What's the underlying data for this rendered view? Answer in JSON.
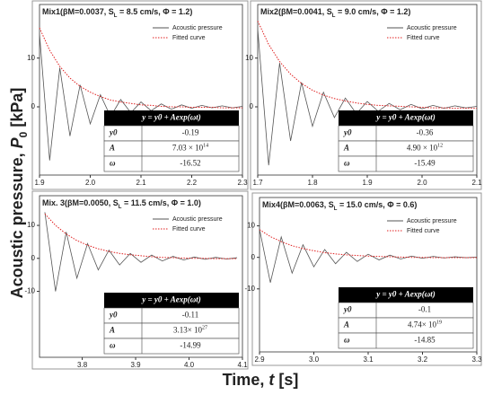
{
  "y_label": {
    "text": "Acoustic pressure, ",
    "symbol": "P",
    "subscript": "0",
    "unit": " [kPa]"
  },
  "x_label": {
    "text": "Time, ",
    "symbol": "t",
    "unit": " [s]"
  },
  "chart_data": [
    {
      "type": "line",
      "title": {
        "main": "Mix1(βM=0.0037, S",
        "sub": "L",
        "rest": " = 8.5 cm/s, Φ = 1.2)"
      },
      "x": [
        1.9,
        1.92,
        1.94,
        1.96,
        1.98,
        2.0,
        2.02,
        2.04,
        2.06,
        2.08,
        2.1,
        2.12,
        2.14,
        2.16,
        2.18,
        2.2,
        2.22,
        2.24,
        2.26,
        2.28,
        2.3
      ],
      "xlim": [
        1.9,
        2.3
      ],
      "xticks": [
        1.9,
        {
          "value": 2,
          "label": "2.0"
        },
        2.1,
        2.2,
        2.3
      ],
      "ylim": [
        -14,
        21
      ],
      "yticks": [
        0,
        10
      ],
      "series": [
        {
          "name": "Acoustic pressure",
          "color": "#555555",
          "values": [
            15,
            -11,
            8,
            -6,
            4.5,
            -3.5,
            2.5,
            -2,
            1.5,
            -1.2,
            1,
            -0.8,
            0.6,
            -0.5,
            0.4,
            -0.3,
            0.3,
            -0.2,
            0.2,
            -0.2,
            0.1
          ]
        },
        {
          "name": "Fitted curve",
          "color": "#e02020",
          "style": "dotted",
          "values": [
            16.2,
            11.6,
            8.3,
            5.9,
            4.2,
            3.0,
            2.1,
            1.4,
            1.0,
            0.7,
            0.4,
            0.3,
            0.1,
            0.0,
            0.0,
            -0.1,
            -0.1,
            -0.1,
            -0.2,
            -0.2,
            -0.2
          ]
        }
      ],
      "table": {
        "header": "y = y0 + Aexp(ωt)",
        "rows": [
          [
            "y0",
            -0.19
          ],
          [
            "A",
            {
              "mantissa": "7.03 × 10",
              "exponent": "14"
            }
          ],
          [
            "ω",
            -16.52
          ]
        ]
      }
    },
    {
      "type": "line",
      "title": {
        "main": "Mix2(βM=0.0041, S",
        "sub": "L",
        "rest": " = 9.0 cm/s, Φ = 1.2)"
      },
      "x": [
        1.7,
        1.72,
        1.74,
        1.76,
        1.78,
        1.8,
        1.82,
        1.84,
        1.86,
        1.88,
        1.9,
        1.92,
        1.94,
        1.96,
        1.98,
        2.0,
        2.02,
        2.04,
        2.06,
        2.08,
        2.1
      ],
      "xlim": [
        1.7,
        2.1
      ],
      "xticks": [
        1.7,
        1.8,
        1.9,
        {
          "value": 2,
          "label": "2.0"
        },
        2.1
      ],
      "ylim": [
        -14,
        21
      ],
      "yticks": [
        0,
        10
      ],
      "series": [
        {
          "name": "Acoustic pressure",
          "color": "#555555",
          "values": [
            16,
            -12,
            9,
            -7,
            5,
            -4,
            3,
            -2.2,
            1.8,
            -1.4,
            1.1,
            -0.9,
            0.7,
            -0.6,
            0.5,
            -0.4,
            0.3,
            -0.3,
            0.2,
            -0.2,
            0.1
          ]
        },
        {
          "name": "Fitted curve",
          "color": "#e02020",
          "style": "dotted",
          "values": [
            17.6,
            12.8,
            9.3,
            6.7,
            4.8,
            3.4,
            2.4,
            1.7,
            1.2,
            0.8,
            0.5,
            0.3,
            0.2,
            0.1,
            0.0,
            -0.1,
            -0.2,
            -0.2,
            -0.3,
            -0.3,
            -0.3
          ]
        }
      ],
      "table": {
        "header": "y = y0 + Aexp(ωt)",
        "rows": [
          [
            "y0",
            -0.36
          ],
          [
            "A",
            {
              "mantissa": "4.90 × 10",
              "exponent": "12"
            }
          ],
          [
            "ω",
            -15.49
          ]
        ]
      }
    },
    {
      "type": "line",
      "title": {
        "main": "Mix. 3(βM=0.0050, S",
        "sub": "L",
        "rest": " = 11.5 cm/s, Φ = 1.0)"
      },
      "x": [
        3.73,
        3.75,
        3.77,
        3.79,
        3.81,
        3.83,
        3.85,
        3.87,
        3.89,
        3.91,
        3.93,
        3.95,
        3.97,
        3.99,
        4.01,
        4.03,
        4.05,
        4.07,
        4.09
      ],
      "xlim": [
        3.72,
        4.1
      ],
      "xticks": [
        3.8,
        3.9,
        {
          "value": 4,
          "label": "4.0"
        },
        4.1
      ],
      "ylim": [
        -30,
        19
      ],
      "yticks": [
        -10,
        0,
        10
      ],
      "series": [
        {
          "name": "Acoustic pressure",
          "color": "#555555",
          "values": [
            14,
            -10,
            8,
            -6,
            4.5,
            -3.5,
            2.5,
            -2,
            1.5,
            -1.2,
            1,
            -0.8,
            0.6,
            -0.5,
            0.4,
            -0.3,
            0.3,
            -0.2,
            0.2
          ]
        },
        {
          "name": "Fitted curve",
          "color": "#e02020",
          "style": "dotted",
          "values": [
            13.5,
            10.0,
            7.4,
            5.4,
            4.0,
            2.9,
            2.1,
            1.5,
            1.1,
            0.8,
            0.5,
            0.3,
            0.2,
            0.1,
            0.0,
            0.0,
            -0.1,
            -0.1,
            -0.1
          ]
        }
      ],
      "table": {
        "header": "y = y0 + Aexp(ωt)",
        "rows": [
          [
            "y0",
            -0.11
          ],
          [
            "A",
            {
              "mantissa": "3.13× 10",
              "exponent": "27"
            }
          ],
          [
            "ω",
            -14.99
          ]
        ]
      }
    },
    {
      "type": "line",
      "title": {
        "main": "Mix4(βM=0.0063, S",
        "sub": "L",
        "rest": " = 15.0 cm/s, Φ = 0.6)"
      },
      "x": [
        2.9,
        2.92,
        2.94,
        2.96,
        2.98,
        3.0,
        3.02,
        3.04,
        3.06,
        3.08,
        3.1,
        3.12,
        3.14,
        3.16,
        3.18,
        3.2,
        3.22,
        3.24,
        3.26,
        3.28,
        3.3
      ],
      "xlim": [
        2.9,
        3.3
      ],
      "xticks": [
        2.9,
        {
          "value": 3,
          "label": "3.0"
        },
        3.1,
        3.2,
        3.3
      ],
      "ylim": [
        -30,
        19
      ],
      "yticks": [
        -10,
        0,
        10
      ],
      "series": [
        {
          "name": "Acoustic pressure",
          "color": "#555555",
          "values": [
            9,
            -8,
            6.5,
            -5,
            4,
            -3,
            2.5,
            -2,
            1.6,
            -1.3,
            1,
            -0.8,
            0.7,
            -0.5,
            0.4,
            -0.3,
            0.3,
            -0.2,
            0.2,
            -0.1,
            0.1
          ]
        },
        {
          "name": "Fitted curve",
          "color": "#e02020",
          "style": "dotted",
          "values": [
            8.8,
            6.6,
            5.0,
            3.7,
            2.8,
            2.1,
            1.5,
            1.1,
            0.8,
            0.6,
            0.4,
            0.3,
            0.2,
            0.1,
            0.0,
            0.0,
            -0.1,
            -0.1,
            -0.1,
            -0.1,
            -0.1
          ]
        }
      ],
      "table": {
        "header": "y = y0 + Aexp(ωt)",
        "rows": [
          [
            "y0",
            -0.1
          ],
          [
            "A",
            {
              "mantissa": "4.74× 10",
              "exponent": "19"
            }
          ],
          [
            "ω",
            -14.85
          ]
        ]
      }
    }
  ]
}
